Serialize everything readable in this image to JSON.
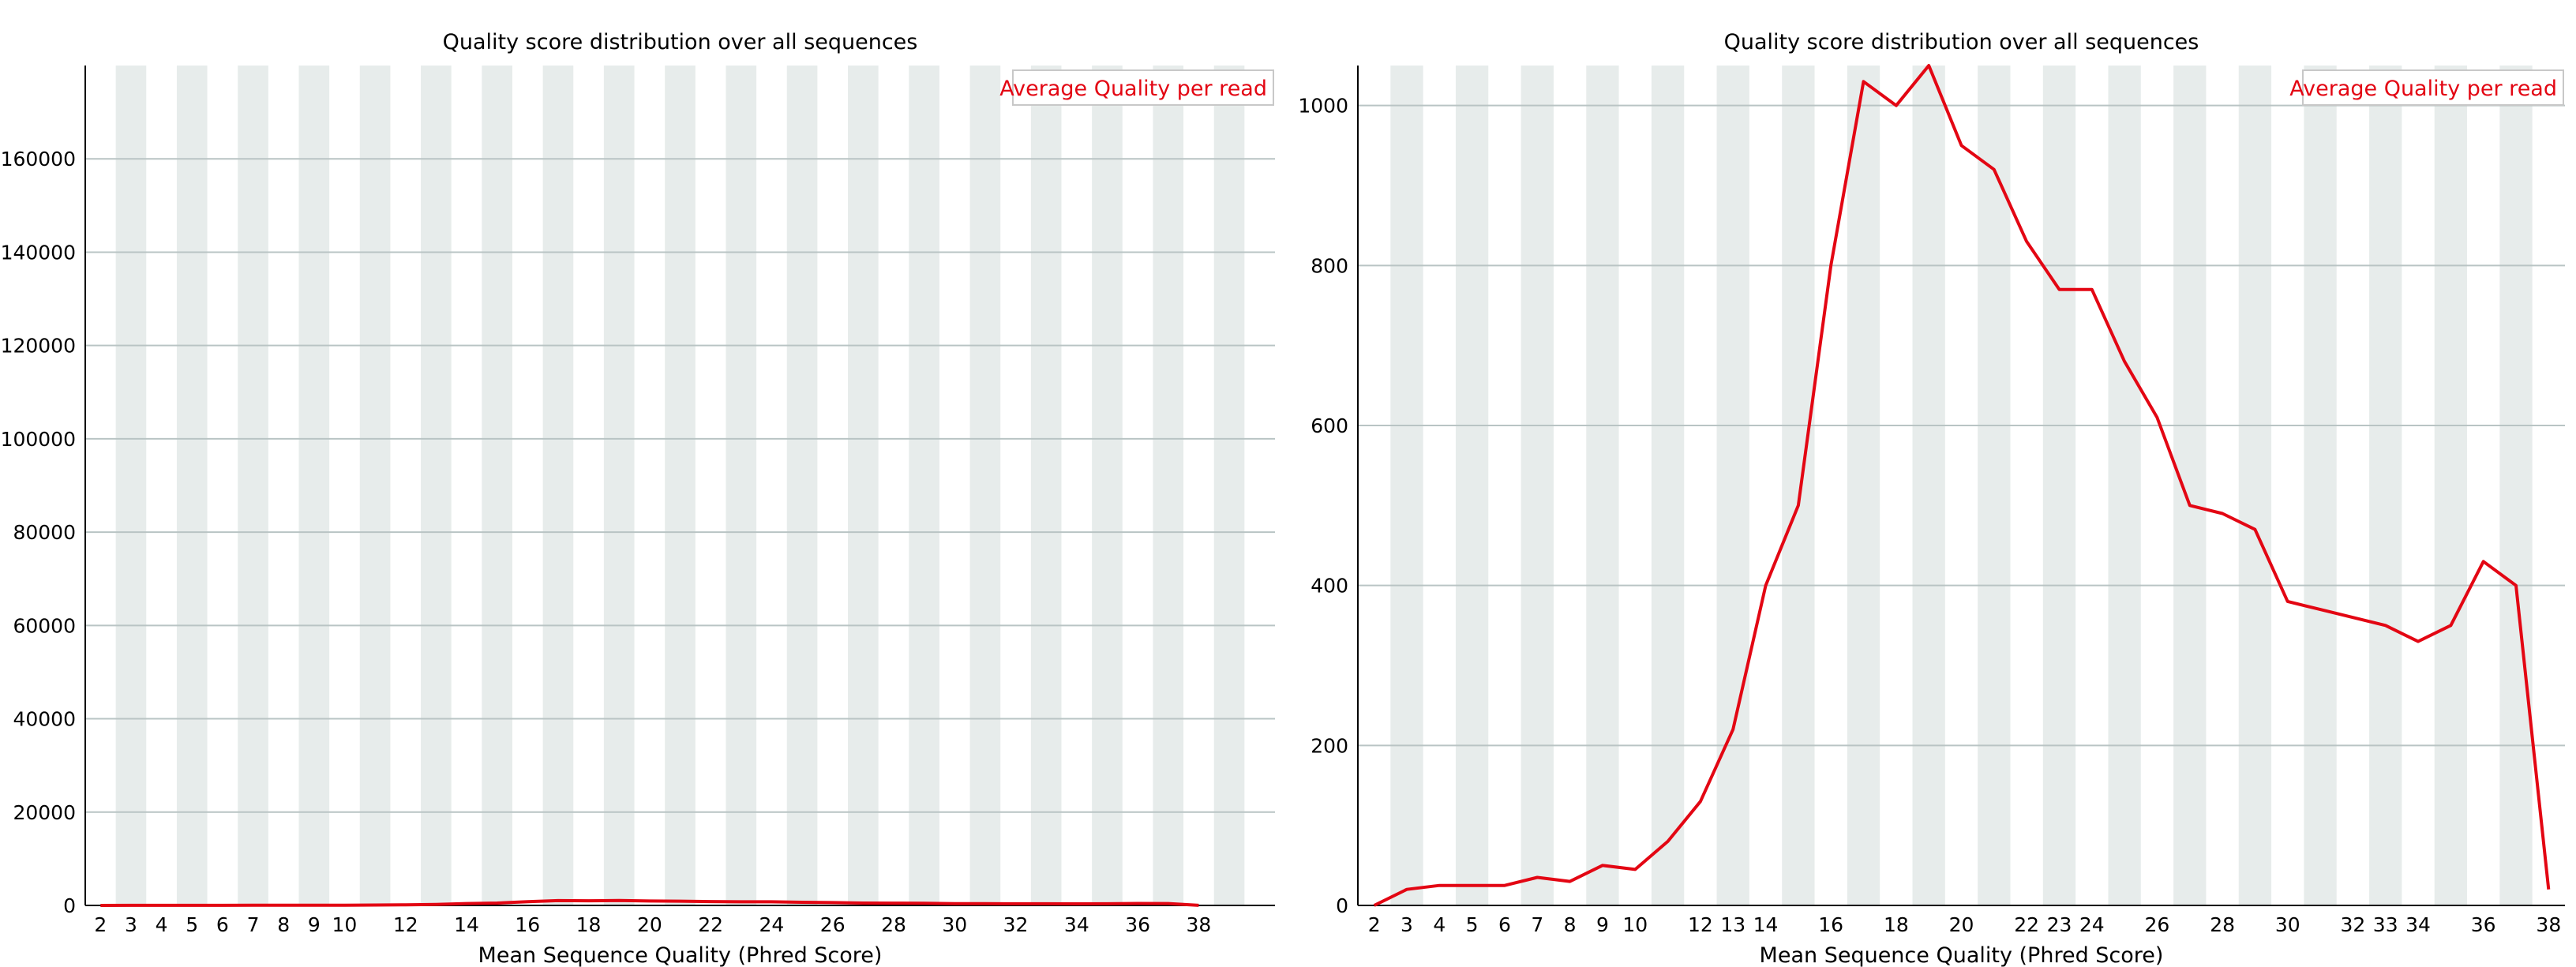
{
  "chart_data": [
    {
      "type": "line",
      "title": "Quality score distribution over all sequences",
      "xlabel": "Mean Sequence Quality (Phred Score)",
      "ylabel": "",
      "legend": "Average Quality per read",
      "legend_position": "top-right",
      "color": "#e30613",
      "grid": true,
      "ylim": [
        0,
        180000
      ],
      "yticks": [
        0,
        20000,
        40000,
        60000,
        80000,
        100000,
        120000,
        140000,
        160000
      ],
      "xlim": [
        1.5,
        40.5
      ],
      "xtick_labels": [
        2,
        3,
        4,
        5,
        6,
        7,
        8,
        9,
        10,
        12,
        14,
        16,
        18,
        20,
        22,
        24,
        26,
        28,
        30,
        32,
        34,
        36,
        38
      ],
      "series": [
        {
          "x": [
            2,
            3,
            4,
            5,
            6,
            7,
            8,
            9,
            10,
            11,
            12,
            13,
            14,
            15,
            16,
            17,
            18,
            19,
            20,
            21,
            22,
            23,
            24,
            25,
            26,
            27,
            28,
            29,
            30,
            31,
            32,
            33,
            34,
            35,
            36,
            37,
            38
          ],
          "values": [
            0,
            20,
            25,
            25,
            25,
            35,
            30,
            50,
            45,
            80,
            130,
            220,
            400,
            500,
            800,
            1030,
            1000,
            1050,
            950,
            920,
            830,
            770,
            770,
            680,
            610,
            500,
            490,
            470,
            380,
            370,
            360,
            350,
            330,
            350,
            430,
            400,
            20
          ]
        }
      ]
    },
    {
      "type": "line",
      "title": "Quality score distribution over all sequences",
      "xlabel": "Mean Sequence Quality (Phred Score)",
      "ylabel": "",
      "legend": "Average Quality per read",
      "legend_position": "top-right",
      "color": "#e30613",
      "grid": true,
      "ylim": [
        0,
        1050
      ],
      "yticks": [
        0,
        200,
        400,
        600,
        800,
        1000
      ],
      "xlim": [
        1.5,
        38.5
      ],
      "xtick_labels": [
        2,
        3,
        4,
        5,
        6,
        7,
        8,
        9,
        10,
        12,
        13,
        14,
        16,
        18,
        20,
        22,
        23,
        24,
        26,
        28,
        30,
        32,
        33,
        34,
        36,
        38
      ],
      "series": [
        {
          "x": [
            2,
            3,
            4,
            5,
            6,
            7,
            8,
            9,
            10,
            11,
            12,
            13,
            14,
            15,
            16,
            17,
            18,
            19,
            20,
            21,
            22,
            23,
            24,
            25,
            26,
            27,
            28,
            29,
            30,
            31,
            32,
            33,
            34,
            35,
            36,
            37,
            38
          ],
          "values": [
            0,
            20,
            25,
            25,
            25,
            35,
            30,
            50,
            45,
            80,
            130,
            220,
            400,
            500,
            800,
            1030,
            1000,
            1050,
            950,
            920,
            830,
            770,
            770,
            680,
            610,
            500,
            490,
            470,
            380,
            370,
            360,
            350,
            330,
            350,
            430,
            400,
            20
          ]
        }
      ]
    }
  ]
}
